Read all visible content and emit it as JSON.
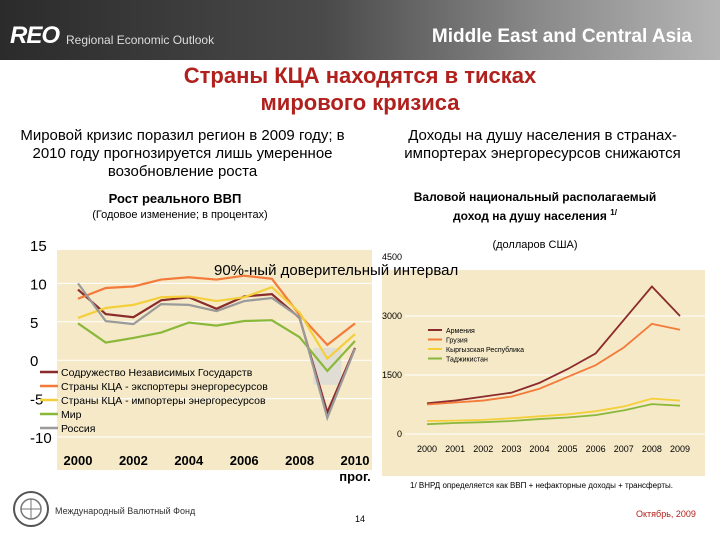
{
  "header": {
    "brand": "REO",
    "brand_sub": "Regional Economic Outlook",
    "region": "Middle East and Central Asia"
  },
  "slide": {
    "title_line1": "Страны КЦА находятся в тисках",
    "title_line2": "мирового кризиса",
    "left_lead": "Мировой кризис поразил регион в 2009 году; в 2010 году прогнозируется лишь умеренное возобновление роста",
    "right_lead": "Доходы на душу населения в странах-импортерах энергоресурсов снижаются",
    "confidence_band_label": "90%-ный доверительный интервал",
    "footnote": "1/ ВНРД определяется как ВВП + нефакторные доходы + трансферты.",
    "org": "Международный Валютный Фонд",
    "page_number": "14",
    "date": "Октябрь, 2009"
  },
  "chart_data": [
    {
      "type": "line",
      "title": "Рост реального ВВП",
      "subtitle": "(Годовое изменение; в процентах)",
      "x": [
        2000,
        2001,
        2002,
        2003,
        2004,
        2005,
        2006,
        2007,
        2008,
        2009,
        2010
      ],
      "x_ticks": [
        "2000",
        "2002",
        "2004",
        "2006",
        "2008",
        "2010"
      ],
      "x_tick_values": [
        2000,
        2002,
        2004,
        2006,
        2008,
        2010
      ],
      "x_tick_suffix": {
        "2010": "прог."
      },
      "ylim": [
        -10,
        15
      ],
      "y_ticks": [
        "-10",
        "-5",
        "0",
        "5",
        "10",
        "15"
      ],
      "y_tick_values": [
        -10,
        -5,
        0,
        5,
        10,
        15
      ],
      "band": {
        "x": 2009,
        "low": -3.2,
        "high": 1.6
      },
      "series": [
        {
          "name": "Содружество Независимых Государств",
          "color": "#8b2b2b",
          "values": [
            9.2,
            6.0,
            5.6,
            7.8,
            8.2,
            6.7,
            8.3,
            8.6,
            5.5,
            -6.8,
            1.6
          ]
        },
        {
          "name": "Страны КЦА - экспортеры энергоресурсов",
          "color": "#f47a3a",
          "values": [
            8.0,
            9.4,
            9.6,
            10.5,
            10.8,
            10.5,
            11.0,
            10.6,
            5.9,
            2.0,
            4.8
          ]
        },
        {
          "name": "Страны КЦА - импортеры энергоресурсов",
          "color": "#f4cf3a",
          "values": [
            5.5,
            6.8,
            7.2,
            8.2,
            8.3,
            7.7,
            8.2,
            9.5,
            6.2,
            0.2,
            3.4
          ]
        },
        {
          "name": "Мир",
          "color": "#8ab83a",
          "values": [
            4.8,
            2.3,
            2.9,
            3.6,
            4.9,
            4.5,
            5.1,
            5.2,
            3.0,
            -1.4,
            2.5
          ]
        },
        {
          "name": "Россия",
          "color": "#9a9a9a",
          "values": [
            10.0,
            5.1,
            4.7,
            7.3,
            7.2,
            6.4,
            7.7,
            8.1,
            5.6,
            -7.5,
            1.5
          ]
        }
      ]
    },
    {
      "type": "line",
      "title": "Валовой национальный располагаемый доход на душу населения",
      "title_superscript": "1/",
      "subtitle": "(долларов США)",
      "x": [
        2000,
        2001,
        2002,
        2003,
        2004,
        2005,
        2006,
        2007,
        2008,
        2009
      ],
      "x_ticks": [
        "2000",
        "2001",
        "2002",
        "2003",
        "2004",
        "2005",
        "2006",
        "2007",
        "2008",
        "2009"
      ],
      "ylim": [
        0,
        4500
      ],
      "y_ticks": [
        "0",
        "1500",
        "3000",
        "4500"
      ],
      "y_tick_values": [
        0,
        1500,
        3000,
        4500
      ],
      "legend_placement": "upper-left",
      "series": [
        {
          "name": "Армения",
          "color": "#8b2b2b",
          "values": [
            780,
            850,
            950,
            1050,
            1300,
            1650,
            2050,
            2900,
            3750,
            3000
          ]
        },
        {
          "name": "Грузия",
          "color": "#f47a3a",
          "values": [
            750,
            800,
            850,
            950,
            1150,
            1450,
            1750,
            2200,
            2800,
            2650
          ]
        },
        {
          "name": "Кыргызская Республика",
          "color": "#f4cf3a",
          "values": [
            330,
            340,
            360,
            400,
            450,
            500,
            580,
            700,
            900,
            850
          ]
        },
        {
          "name": "Таджикистан",
          "color": "#8ab83a",
          "values": [
            250,
            280,
            300,
            330,
            380,
            420,
            480,
            600,
            760,
            720
          ]
        }
      ]
    }
  ]
}
